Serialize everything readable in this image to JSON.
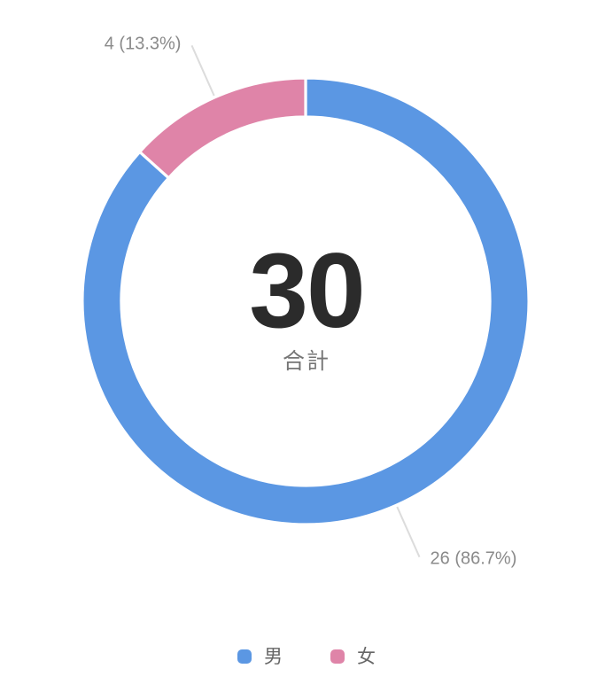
{
  "chart_data": {
    "type": "pie",
    "donut": true,
    "title": "",
    "total": "30",
    "total_label": "合計",
    "start_angle": "top",
    "direction": "clockwise",
    "legend_position": "bottom",
    "categories": [
      "男",
      "女"
    ],
    "values": [
      26,
      4
    ],
    "slices": [
      {
        "label": "男",
        "value": 26,
        "percent": 86.7,
        "callout": "26 (86.7%)",
        "color": "#5b97e3"
      },
      {
        "label": "女",
        "value": 4,
        "percent": 13.3,
        "callout": "4 (13.3%)",
        "color": "#df84a8"
      }
    ],
    "colors": {
      "male_blue": "#5b97e3",
      "female_pink": "#df84a8",
      "callout_line": "#dcdcdc",
      "callout_text": "#8a8a8a",
      "total_text": "#2b2b2b",
      "total_label_text": "#757575",
      "legend_text": "#666666",
      "slice_border": "#ffffff"
    }
  }
}
